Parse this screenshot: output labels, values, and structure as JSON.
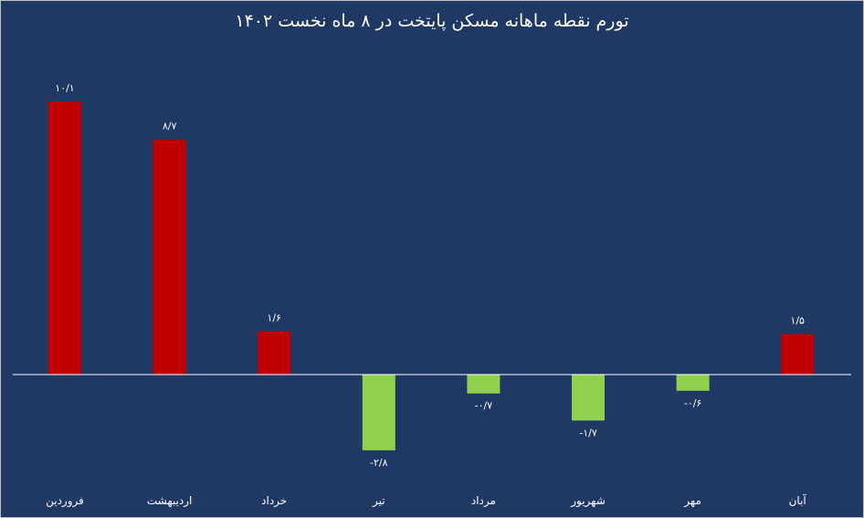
{
  "chart_data": {
    "type": "bar",
    "title": "تورم نقطه ماهانه مسکن پایتخت در ۸  ماه نخست ۱۴۰۲",
    "categories": [
      "فروردین",
      "اردیبهشت",
      "خرداد",
      "تیر",
      "مرداد",
      "شهریور",
      "مهر",
      "آبان"
    ],
    "values": [
      10.1,
      8.7,
      1.6,
      -2.8,
      -0.7,
      -1.7,
      -0.6,
      1.5
    ],
    "data_labels": [
      "۱۰/۱",
      "۸/۷",
      "۱/۶",
      "-۲/۸",
      "-۰/۷",
      "-۱/۷",
      "-۰/۶",
      "۱/۵"
    ],
    "xlabel": "",
    "ylabel": "",
    "grid": false,
    "legend": "none",
    "colors": {
      "background": "#203864",
      "positive": "#c00000",
      "negative": "#92d050",
      "axis": "#ffffff",
      "text": "#ffffff"
    }
  }
}
